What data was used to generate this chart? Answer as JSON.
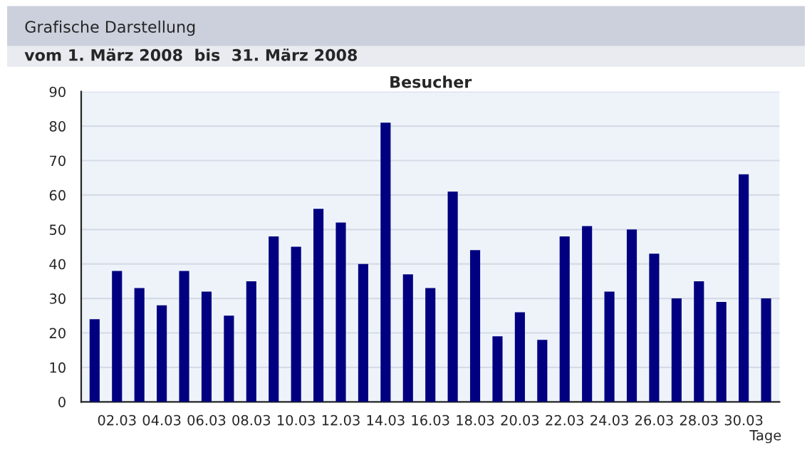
{
  "chart_data": {
    "type": "bar",
    "title": "Besucher",
    "xlabel": "Tage",
    "annotations": [
      "Grafische Darstellung",
      "vom 1. März 2008  bis  31. März 2008"
    ],
    "categories": [
      null,
      "02.03",
      null,
      "04.03",
      null,
      "06.03",
      null,
      "08.03",
      null,
      "10.03",
      null,
      "12.03",
      null,
      "14.03",
      null,
      "16.03",
      null,
      "18.03",
      null,
      "20.03",
      null,
      "22.03",
      null,
      "24.03",
      null,
      "26.03",
      null,
      "28.03",
      null,
      "30.03",
      null
    ],
    "values": [
      24,
      38,
      33,
      28,
      38,
      32,
      25,
      35,
      48,
      45,
      56,
      52,
      40,
      81,
      37,
      33,
      61,
      44,
      19,
      26,
      18,
      48,
      51,
      32,
      50,
      43,
      30,
      35,
      29,
      66,
      30
    ],
    "color": "#000080",
    "ylim": [
      0,
      90
    ],
    "yticks": [
      0,
      10,
      20,
      30,
      40,
      50,
      60,
      70,
      80,
      90
    ],
    "grid": "y"
  }
}
